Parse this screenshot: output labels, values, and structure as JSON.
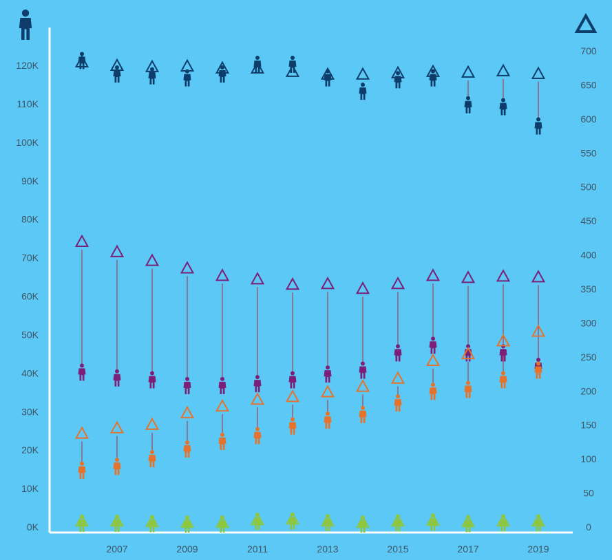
{
  "chart_data": {
    "type": "scatter",
    "title": "",
    "xlabel": "",
    "x": [
      2006,
      2007,
      2008,
      2009,
      2010,
      2011,
      2012,
      2013,
      2014,
      2015,
      2016,
      2017,
      2018,
      2019
    ],
    "x_tick_labels": [
      "2007",
      "2009",
      "2011",
      "2013",
      "2015",
      "2017",
      "2019"
    ],
    "left_axis": {
      "marker": "person-icon",
      "ylim": [
        0,
        125000
      ],
      "ticks": [
        0,
        10000,
        20000,
        30000,
        40000,
        50000,
        60000,
        70000,
        80000,
        90000,
        100000,
        110000,
        120000
      ],
      "tick_labels": [
        "0K",
        "10K",
        "20K",
        "30K",
        "40K",
        "50K",
        "60K",
        "70K",
        "80K",
        "90K",
        "100K",
        "110K",
        "120K"
      ]
    },
    "right_axis": {
      "marker": "triangle-icon",
      "ylim": [
        0,
        730
      ],
      "ticks": [
        0,
        50,
        100,
        150,
        200,
        250,
        300,
        350,
        400,
        450,
        500,
        550,
        600,
        650,
        700
      ],
      "tick_labels": [
        "0",
        "50",
        "100",
        "150",
        "200",
        "250",
        "300",
        "350",
        "400",
        "450",
        "500",
        "550",
        "600",
        "650",
        "700"
      ]
    },
    "series": [
      {
        "color": "#0e3d6b",
        "persons": [
          121000,
          117500,
          117000,
          116500,
          117500,
          120000,
          120000,
          116500,
          113000,
          116000,
          116500,
          109500,
          109000,
          104000
        ],
        "triangles": [
          684,
          679,
          677,
          678,
          675,
          675,
          670,
          666,
          666,
          668,
          670,
          669,
          671,
          667
        ]
      },
      {
        "color": "#7b1f78",
        "persons": [
          40000,
          38500,
          38000,
          36500,
          36500,
          37000,
          38000,
          39500,
          40500,
          45000,
          47000,
          45000,
          45000,
          41500
        ],
        "triangles": [
          420,
          405,
          392,
          381,
          370,
          365,
          357,
          358,
          351,
          358,
          370,
          367,
          369,
          368
        ]
      },
      {
        "color": "#e4742d",
        "persons": [
          14500,
          15500,
          17500,
          20000,
          22000,
          23500,
          26000,
          27500,
          29000,
          32000,
          35000,
          35500,
          38000,
          40500
        ],
        "triangles": [
          138,
          146,
          151,
          168,
          178,
          188,
          192,
          199,
          207,
          219,
          245,
          255,
          274,
          288
        ]
      },
      {
        "color": "#8ec63f",
        "persons": [
          700,
          700,
          600,
          500,
          500,
          1200,
          1300,
          900,
          500,
          800,
          1000,
          600,
          800,
          800
        ],
        "triangles": [
          9,
          9,
          8,
          7,
          7,
          11,
          12,
          9,
          7,
          9,
          10,
          8,
          9,
          9
        ]
      }
    ],
    "connector_color": "#b2283a",
    "grid": false
  }
}
